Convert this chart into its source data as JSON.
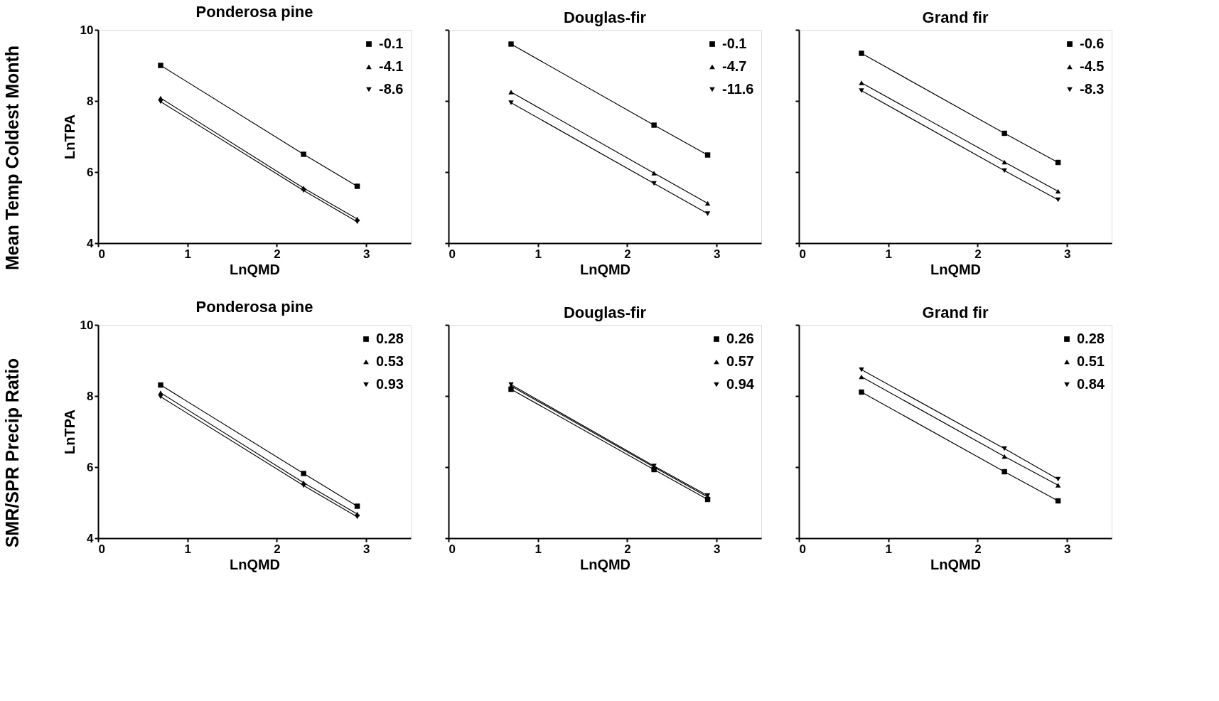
{
  "chart_data": [
    {
      "type": "line",
      "title": "Ponderosa pine",
      "xlabel": "LnQMD",
      "ylabel": "LnTPA",
      "annotations": [
        "Mean Temp Coldest Month"
      ],
      "xlim": [
        0,
        3.5
      ],
      "xticks": [
        0,
        1,
        2,
        3
      ],
      "ylim": [
        4,
        10
      ],
      "yticks": [
        4,
        6,
        8,
        10
      ],
      "grid": false,
      "legend": "top right",
      "series": [
        {
          "name": "-0.1",
          "color": "#000000",
          "marker": "square",
          "x": [
            0.7,
            2.3,
            2.9
          ],
          "values": [
            9.0,
            6.5,
            5.6
          ]
        },
        {
          "name": "-4.1",
          "color": "#000000",
          "marker": "triangle",
          "x": [
            0.7,
            2.3,
            2.9
          ],
          "values": [
            8.08,
            5.55,
            4.68
          ]
        },
        {
          "name": "-8.6",
          "color": "#000000",
          "marker": "triangle-down",
          "x": [
            0.7,
            2.3,
            2.9
          ],
          "values": [
            7.98,
            5.48,
            4.6
          ]
        }
      ]
    },
    {
      "type": "line",
      "title": "Douglas-fir",
      "xlabel": "LnQMD",
      "xlim": [
        0,
        3.5
      ],
      "xticks": [
        0,
        1,
        2,
        3
      ],
      "ylim": [
        4,
        10
      ],
      "yticks": [
        4,
        6,
        8,
        10
      ],
      "tick_labels": "x",
      "grid": false,
      "legend": "top right",
      "series": [
        {
          "name": "-0.1",
          "color": "#000000",
          "marker": "square",
          "x": [
            0.7,
            2.3,
            2.9
          ],
          "values": [
            9.6,
            7.32,
            6.48
          ]
        },
        {
          "name": "-4.7",
          "color": "#000000",
          "marker": "triangle",
          "x": [
            0.7,
            2.3,
            2.9
          ],
          "values": [
            8.25,
            5.97,
            5.12
          ]
        },
        {
          "name": "-11.6",
          "color": "#000000",
          "marker": "triangle-down",
          "x": [
            0.7,
            2.3,
            2.9
          ],
          "values": [
            7.95,
            5.68,
            4.83
          ]
        }
      ]
    },
    {
      "type": "line",
      "title": "Grand fir",
      "xlabel": "LnQMD",
      "xlim": [
        0,
        3.5
      ],
      "xticks": [
        0,
        1,
        2,
        3
      ],
      "ylim": [
        4,
        10
      ],
      "yticks": [
        4,
        6,
        8,
        10
      ],
      "tick_labels": "x",
      "grid": false,
      "legend": "top right",
      "series": [
        {
          "name": "-0.6",
          "color": "#000000",
          "marker": "square",
          "x": [
            0.7,
            2.3,
            2.9
          ],
          "values": [
            9.34,
            7.09,
            6.27
          ]
        },
        {
          "name": "-4.5",
          "color": "#000000",
          "marker": "triangle",
          "x": [
            0.7,
            2.3,
            2.9
          ],
          "values": [
            8.51,
            6.28,
            5.46
          ]
        },
        {
          "name": "-8.3",
          "color": "#000000",
          "marker": "triangle-down",
          "x": [
            0.7,
            2.3,
            2.9
          ],
          "values": [
            8.29,
            6.04,
            5.22
          ]
        }
      ]
    },
    {
      "type": "line",
      "title": "Ponderosa pine",
      "xlabel": "LnQMD",
      "ylabel": "LnTPA",
      "annotations": [
        "SMR/SPR Precip Ratio"
      ],
      "xlim": [
        0,
        3.5
      ],
      "xticks": [
        0,
        1,
        2,
        3
      ],
      "ylim": [
        4,
        10
      ],
      "yticks": [
        4,
        6,
        8,
        10
      ],
      "grid": false,
      "legend": "top right",
      "series": [
        {
          "name": "0.28",
          "color": "#000000",
          "marker": "square",
          "x": [
            0.7,
            2.3,
            2.9
          ],
          "values": [
            8.31,
            5.82,
            4.9
          ]
        },
        {
          "name": "0.53",
          "color": "#000000",
          "marker": "triangle",
          "x": [
            0.7,
            2.3,
            2.9
          ],
          "values": [
            8.09,
            5.56,
            4.68
          ]
        },
        {
          "name": "0.93",
          "color": "#000000",
          "marker": "triangle-down",
          "x": [
            0.7,
            2.3,
            2.9
          ],
          "values": [
            7.98,
            5.48,
            4.6
          ]
        }
      ]
    },
    {
      "type": "line",
      "title": "Douglas-fir",
      "xlabel": "LnQMD",
      "xlim": [
        0,
        3.5
      ],
      "xticks": [
        0,
        1,
        2,
        3
      ],
      "ylim": [
        4,
        10
      ],
      "yticks": [
        4,
        6,
        8,
        10
      ],
      "tick_labels": "x",
      "grid": false,
      "legend": "top right",
      "series": [
        {
          "name": "0.26",
          "color": "#000000",
          "marker": "square",
          "x": [
            0.7,
            2.3,
            2.9
          ],
          "values": [
            8.19,
            5.93,
            5.09
          ]
        },
        {
          "name": "0.57",
          "color": "#000000",
          "marker": "triangle",
          "x": [
            0.7,
            2.3,
            2.9
          ],
          "values": [
            8.28,
            6.0,
            5.16
          ]
        },
        {
          "name": "0.94",
          "color": "#000000",
          "marker": "triangle-down",
          "x": [
            0.7,
            2.3,
            2.9
          ],
          "values": [
            8.32,
            6.03,
            5.2
          ]
        }
      ]
    },
    {
      "type": "line",
      "title": "Grand fir",
      "xlabel": "LnQMD",
      "xlim": [
        0,
        3.5
      ],
      "xticks": [
        0,
        1,
        2,
        3
      ],
      "ylim": [
        4,
        10
      ],
      "yticks": [
        4,
        6,
        8,
        10
      ],
      "tick_labels": "x",
      "grid": false,
      "legend": "top right",
      "series": [
        {
          "name": "0.28",
          "color": "#000000",
          "marker": "square",
          "x": [
            0.7,
            2.3,
            2.9
          ],
          "values": [
            8.11,
            5.87,
            5.05
          ]
        },
        {
          "name": "0.51",
          "color": "#000000",
          "marker": "triangle",
          "x": [
            0.7,
            2.3,
            2.9
          ],
          "values": [
            8.54,
            6.3,
            5.49
          ]
        },
        {
          "name": "0.84",
          "color": "#000000",
          "marker": "triangle-down",
          "x": [
            0.7,
            2.3,
            2.9
          ],
          "values": [
            8.74,
            6.52,
            5.66
          ]
        }
      ]
    }
  ]
}
